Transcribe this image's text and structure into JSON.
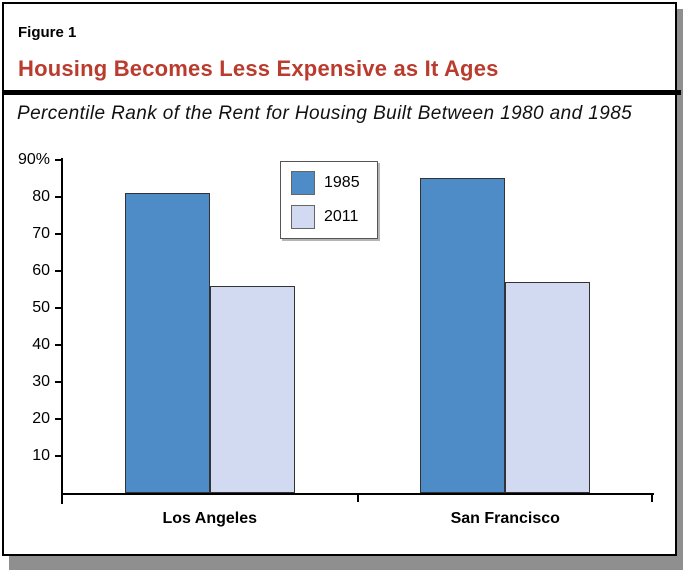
{
  "figure": {
    "label": "Figure 1",
    "title": "Housing Becomes Less Expensive as It Ages",
    "subtitle": "Percentile Rank of the Rent for Housing Built Between 1980 and 1985"
  },
  "colors": {
    "title_red": "#b93c2e",
    "bar_1985": "#4e8cc8",
    "bar_2011": "#d1daf0",
    "frame_border": "#000000",
    "drop_shadow": "#8f8f8f"
  },
  "chart_data": {
    "type": "bar",
    "categories": [
      "Los Angeles",
      "San Francisco"
    ],
    "series": [
      {
        "name": "1985",
        "values": [
          81,
          85
        ],
        "color": "#4e8cc8"
      },
      {
        "name": "2011",
        "values": [
          56,
          57
        ],
        "color": "#d1daf0"
      }
    ],
    "ylim": [
      0,
      90
    ],
    "yticks": [
      10,
      20,
      30,
      40,
      50,
      60,
      70,
      80,
      90
    ],
    "ytick_labels": [
      "10",
      "20",
      "30",
      "40",
      "50",
      "60",
      "70",
      "80",
      "90%"
    ],
    "grid": false,
    "legend_position": "top-center-left",
    "legend_entries": [
      "1985",
      "2011"
    ]
  }
}
